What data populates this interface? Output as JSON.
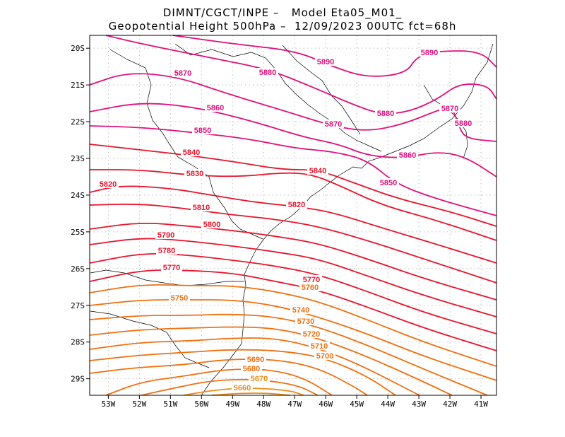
{
  "title": {
    "line1": "DIMNT/CGCT/INPE –   Model Eta05_M01_",
    "line2": "Geopotential Height 500hPa –  12/09/2023 00UTC fct=68h"
  },
  "chart_data": {
    "type": "contour",
    "variable": "Geopotential Height 500hPa",
    "lon_range": [
      -53.6,
      -40.5
    ],
    "lat_range": [
      -29.45,
      -19.65
    ],
    "lon_ticks": [
      "53W",
      "52W",
      "51W",
      "50W",
      "49W",
      "48W",
      "47W",
      "46W",
      "45W",
      "44W",
      "43W",
      "42W",
      "41W"
    ],
    "lat_ticks": [
      "20S",
      "21S",
      "22S",
      "23S",
      "24S",
      "25S",
      "26S",
      "27S",
      "28S",
      "29S"
    ],
    "grid": true,
    "contour_levels": [
      5660,
      5670,
      5680,
      5690,
      5700,
      5710,
      5720,
      5730,
      5740,
      5750,
      5760,
      5770,
      5780,
      5790,
      5800,
      5810,
      5820,
      5830,
      5840,
      5850,
      5860,
      5870,
      5880,
      5890
    ],
    "contour_labels": [
      {
        "text": "5890"
      },
      {
        "text": "5890"
      },
      {
        "text": "5880"
      },
      {
        "text": "5870"
      },
      {
        "text": "5880"
      },
      {
        "text": "5870"
      },
      {
        "text": "5860"
      },
      {
        "text": "5880"
      },
      {
        "text": "5870"
      },
      {
        "text": "5850"
      },
      {
        "text": "5840"
      },
      {
        "text": "5860"
      },
      {
        "text": "5830"
      },
      {
        "text": "5840"
      },
      {
        "text": "5820"
      },
      {
        "text": "5850"
      },
      {
        "text": "5810"
      },
      {
        "text": "5820"
      },
      {
        "text": "5800"
      },
      {
        "text": "5790"
      },
      {
        "text": "5780"
      },
      {
        "text": "5770"
      },
      {
        "text": "5770"
      },
      {
        "text": "5760"
      },
      {
        "text": "5750"
      },
      {
        "text": "5740"
      },
      {
        "text": "5730"
      },
      {
        "text": "5720"
      },
      {
        "text": "5710"
      },
      {
        "text": "5700"
      },
      {
        "text": "5690"
      },
      {
        "text": "5680"
      },
      {
        "text": "5670"
      },
      {
        "text": "5660"
      }
    ],
    "colors": {
      "high": "#e0107c",
      "mid": "#e8142c",
      "low": "#f07010",
      "lowest": "#f08c14",
      "coast": "#000000",
      "grid": "#bfbfbf"
    }
  }
}
